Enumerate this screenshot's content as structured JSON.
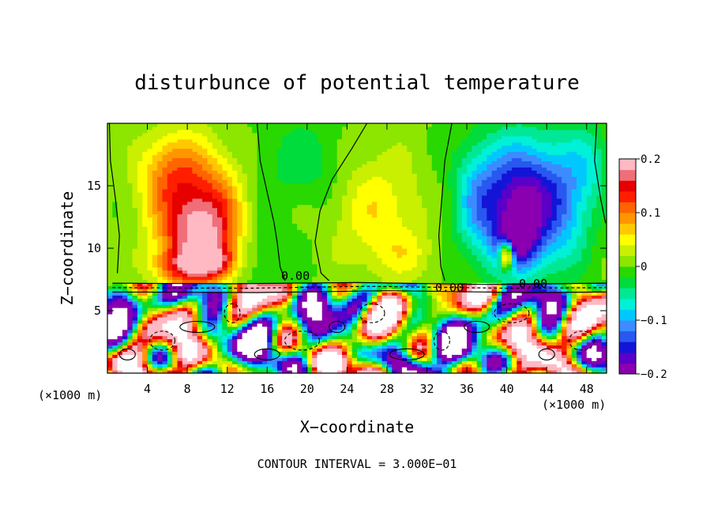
{
  "chart_data": {
    "type": "heatmap",
    "title": "disturbunce of potential temperature",
    "xlabel": "X−coordinate",
    "ylabel": "Z−coordinate",
    "x_unit_left": "(×1000 m)",
    "x_unit_right": "(×1000 m)",
    "footer": "CONTOUR INTERVAL = 3.000E−01",
    "xlim": [
      0,
      50
    ],
    "ylim": [
      0,
      20
    ],
    "xticks": [
      4,
      8,
      12,
      16,
      20,
      24,
      28,
      32,
      36,
      40,
      44,
      48
    ],
    "xtick_labels": [
      "4",
      "8",
      "12",
      "16",
      "20",
      "24",
      "28",
      "32",
      "36",
      "40",
      "44",
      "48"
    ],
    "yticks": [
      5,
      10,
      15
    ],
    "ytick_labels": [
      "5",
      "10",
      "15"
    ],
    "colorbar": {
      "min": -0.2,
      "max": 0.2,
      "ticks": [
        0.2,
        0.1,
        0,
        -0.1,
        -0.2
      ],
      "tick_labels": [
        "0.2",
        "0.1",
        "0",
        "−0.1",
        "−0.2"
      ],
      "colors": [
        "#8a00b0",
        "#5a00c8",
        "#1414d8",
        "#2858f0",
        "#3c8cff",
        "#00c8ff",
        "#00f0d8",
        "#00e896",
        "#00dc3c",
        "#28d800",
        "#8ce600",
        "#c8f000",
        "#ffff00",
        "#ffc800",
        "#ff9600",
        "#ff6400",
        "#ff1e00",
        "#e60000",
        "#f06e78",
        "#ffb9c3"
      ]
    },
    "contour_labels": [
      "0.00",
      "0.00",
      "0.00"
    ],
    "blobs": [
      {
        "x": 9,
        "z": 11,
        "v": 0.16,
        "sx": 4.0,
        "sz": 3.4
      },
      {
        "x": 6.5,
        "z": 16,
        "v": 0.1,
        "sx": 3.4,
        "sz": 3.4
      },
      {
        "x": 11,
        "z": 14,
        "v": 0.07,
        "sx": 3.6,
        "sz": 4.2
      },
      {
        "x": 8,
        "z": 8.5,
        "v": 0.1,
        "sx": 3.2,
        "sz": 1.4
      },
      {
        "x": 11,
        "z": 9.0,
        "v": 0.08,
        "sx": 1.8,
        "sz": 1.3
      },
      {
        "x": 14.5,
        "z": 12,
        "v": -0.025,
        "sx": 2.8,
        "sz": 5.5
      },
      {
        "x": 20,
        "z": 17,
        "v": -0.035,
        "sx": 4.0,
        "sz": 3.2
      },
      {
        "x": 17,
        "z": 9.0,
        "v": -0.012,
        "sx": 3.0,
        "sz": 2.0
      },
      {
        "x": 27,
        "z": 13,
        "v": 0.055,
        "sx": 4.5,
        "sz": 5.0
      },
      {
        "x": 30,
        "z": 9.5,
        "v": 0.03,
        "sx": 3.0,
        "sz": 2.0
      },
      {
        "x": 41.5,
        "z": 13.5,
        "v": -0.19,
        "sx": 3.6,
        "sz": 5.0
      },
      {
        "x": 41,
        "z": 10.5,
        "v": -0.1,
        "sx": 2.0,
        "sz": 2.0
      },
      {
        "x": 37,
        "z": 14,
        "v": -0.08,
        "sx": 2.5,
        "sz": 4.5
      },
      {
        "x": 46,
        "z": 14,
        "v": -0.08,
        "sx": 2.8,
        "sz": 5.0
      },
      {
        "x": 40,
        "z": 9.5,
        "v": 0.22,
        "sx": 0.7,
        "sz": 1.1
      },
      {
        "x": 48.5,
        "z": 17,
        "v": -0.04,
        "sx": 2.0,
        "sz": 3.0
      }
    ]
  }
}
